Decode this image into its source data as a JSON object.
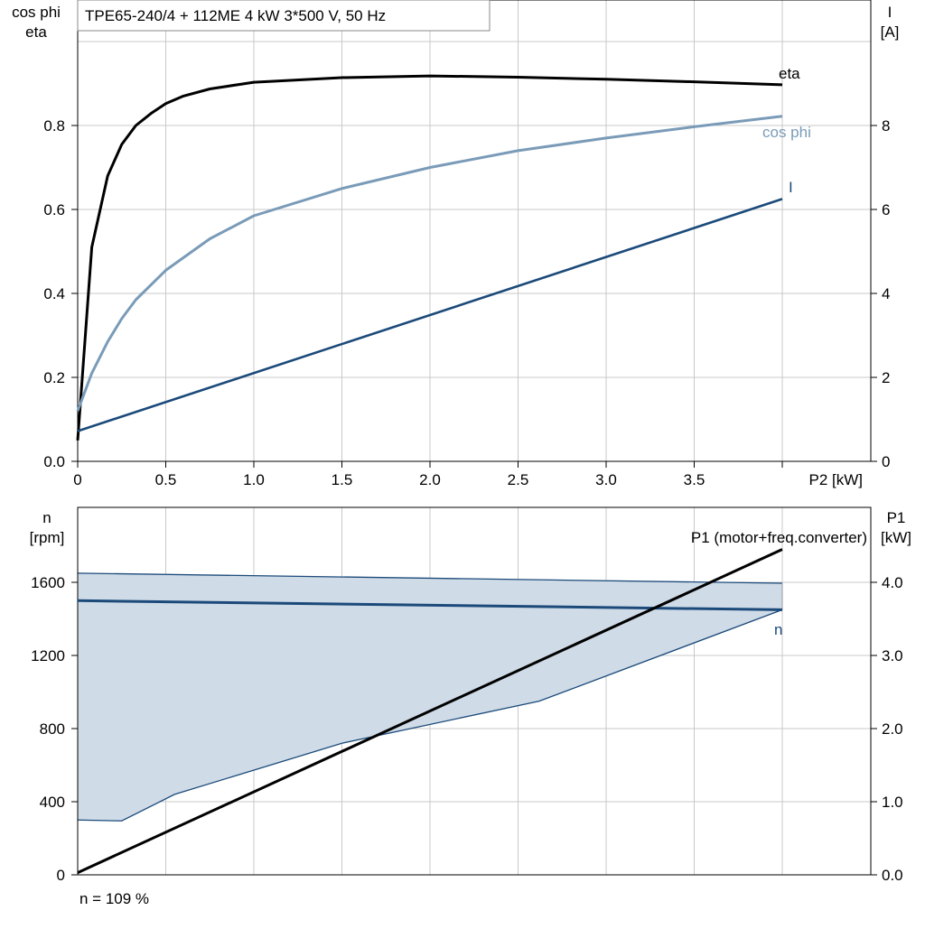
{
  "title": "TPE65-240/4 + 112ME   4 kW   3*500 V, 50 Hz",
  "footnote": "n = 109 %",
  "colors": {
    "eta": "#000000",
    "cosphi": "#7a9bb8",
    "current": "#1b4a7a",
    "speed": "#1b4a7a",
    "band_fill": "#cfdbe7",
    "p1": "#000000",
    "grid": "#c8c8c8"
  },
  "chart_data": [
    {
      "type": "line",
      "ylabel_left": [
        "cos phi",
        "eta"
      ],
      "ylabel_right": [
        "I",
        "[A]"
      ],
      "xlabel": "P2 [kW]",
      "xlim": [
        0,
        4.5
      ],
      "ylim_left": [
        0,
        1.0
      ],
      "ylim_right": [
        0,
        10
      ],
      "x_ticks": [
        "0",
        "0.5",
        "1.0",
        "1.5",
        "2.0",
        "2.5",
        "3.0",
        "3.5"
      ],
      "y_left_ticks": [
        "0.0",
        "0.2",
        "0.4",
        "0.6",
        "0.8"
      ],
      "y_right_ticks": [
        "0",
        "2",
        "4",
        "6",
        "8"
      ],
      "grid": true,
      "series": [
        {
          "name": "eta",
          "axis": "left",
          "x": [
            0,
            0.08,
            0.17,
            0.25,
            0.33,
            0.42,
            0.5,
            0.6,
            0.75,
            1.0,
            1.5,
            2.0,
            2.5,
            3.0,
            3.5,
            4.0
          ],
          "y": [
            0.05,
            0.51,
            0.68,
            0.755,
            0.8,
            0.83,
            0.852,
            0.87,
            0.887,
            0.903,
            0.914,
            0.918,
            0.915,
            0.91,
            0.904,
            0.897
          ]
        },
        {
          "name": "cos phi",
          "axis": "left",
          "x": [
            0,
            0.08,
            0.17,
            0.25,
            0.33,
            0.5,
            0.75,
            1.0,
            1.5,
            2.0,
            2.5,
            3.0,
            3.5,
            4.0
          ],
          "y": [
            0.12,
            0.21,
            0.285,
            0.34,
            0.385,
            0.455,
            0.53,
            0.585,
            0.65,
            0.7,
            0.74,
            0.77,
            0.797,
            0.822
          ]
        },
        {
          "name": "I",
          "axis": "right",
          "x": [
            0,
            4.0
          ],
          "y": [
            0.72,
            6.25
          ]
        }
      ]
    },
    {
      "type": "line",
      "ylabel_left": [
        "n",
        "[rpm]"
      ],
      "ylabel_right": [
        "P1",
        "[kW]"
      ],
      "xlim": [
        0,
        4.5
      ],
      "ylim_left": [
        0,
        2000
      ],
      "ylim_right": [
        0,
        5.0
      ],
      "y_left_ticks": [
        "0",
        "400",
        "800",
        "1200",
        "1600"
      ],
      "y_right_ticks": [
        "0.0",
        "1.0",
        "2.0",
        "3.0",
        "4.0"
      ],
      "grid": true,
      "band": {
        "x": [
          0,
          0.25,
          0.55,
          1.5,
          2.62,
          4.0
        ],
        "upper_x": [
          0,
          4.0
        ],
        "upper_y": [
          1650,
          1595
        ],
        "lower_y": [
          300,
          295,
          440,
          720,
          950,
          1450
        ]
      },
      "series": [
        {
          "name": "n",
          "axis": "left",
          "x": [
            0,
            4.0
          ],
          "y": [
            1500,
            1450
          ]
        },
        {
          "name": "P1 (motor+freq.converter)",
          "axis": "right",
          "x": [
            0,
            4.0
          ],
          "y": [
            0.03,
            4.45
          ]
        }
      ]
    }
  ]
}
